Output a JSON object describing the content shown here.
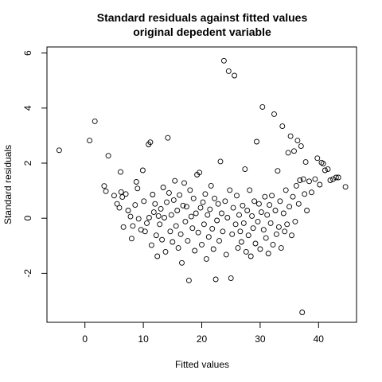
{
  "chart_data": {
    "type": "scatter",
    "title": "Standard residuals against fitted values",
    "subtitle": "original depedent variable",
    "xlabel": "Fitted values",
    "ylabel": "Standard residuals",
    "xlim": [
      -6.5,
      46.5
    ],
    "ylim": [
      -3.78,
      6.22
    ],
    "xticks": [
      0,
      10,
      20,
      30,
      40
    ],
    "xtick_labels": [
      "0",
      "10",
      "20",
      "30",
      "40"
    ],
    "yticks": [
      -2,
      0,
      2,
      4,
      6
    ],
    "ytick_labels": [
      "-2",
      "0",
      "2",
      "4",
      "6"
    ],
    "marker": "open-circle",
    "grid": false,
    "legend": "none",
    "series": [
      {
        "points": [
          [
            -4.4,
            2.47
          ],
          [
            0.8,
            2.82
          ],
          [
            1.7,
            3.52
          ],
          [
            3.3,
            1.17
          ],
          [
            3.6,
            0.98
          ],
          [
            4.0,
            2.27
          ],
          [
            5.0,
            0.82
          ],
          [
            5.5,
            0.52
          ],
          [
            5.9,
            0.38
          ],
          [
            6.1,
            1.68
          ],
          [
            6.2,
            0.95
          ],
          [
            6.4,
            0.77
          ],
          [
            6.6,
            -0.32
          ],
          [
            7.0,
            0.88
          ],
          [
            7.4,
            0.28
          ],
          [
            7.8,
            0.06
          ],
          [
            8.0,
            -0.74
          ],
          [
            8.2,
            -0.28
          ],
          [
            8.6,
            0.48
          ],
          [
            8.8,
            1.32
          ],
          [
            9.0,
            1.08
          ],
          [
            9.2,
            -0.02
          ],
          [
            9.6,
            -0.42
          ],
          [
            9.9,
            1.74
          ],
          [
            10.1,
            0.62
          ],
          [
            10.3,
            -0.48
          ],
          [
            10.6,
            -0.18
          ],
          [
            10.9,
            2.68
          ],
          [
            11.0,
            0.02
          ],
          [
            11.2,
            2.76
          ],
          [
            11.4,
            -0.98
          ],
          [
            11.6,
            0.86
          ],
          [
            11.8,
            0.22
          ],
          [
            12.0,
            0.52
          ],
          [
            12.2,
            -0.62
          ],
          [
            12.4,
            -1.38
          ],
          [
            12.6,
            0.08
          ],
          [
            12.8,
            -0.22
          ],
          [
            13.0,
            0.34
          ],
          [
            13.2,
            -0.78
          ],
          [
            13.4,
            1.12
          ],
          [
            13.6,
            0.02
          ],
          [
            13.8,
            -1.22
          ],
          [
            14.0,
            0.58
          ],
          [
            14.2,
            2.92
          ],
          [
            14.4,
            0.92
          ],
          [
            14.6,
            -0.48
          ],
          [
            14.8,
            0.12
          ],
          [
            15.0,
            -0.86
          ],
          [
            15.2,
            0.66
          ],
          [
            15.4,
            1.36
          ],
          [
            15.6,
            -0.28
          ],
          [
            15.8,
            0.28
          ],
          [
            16.0,
            -1.08
          ],
          [
            16.2,
            0.84
          ],
          [
            16.4,
            -0.58
          ],
          [
            16.6,
            -1.62
          ],
          [
            16.8,
            0.46
          ],
          [
            17.0,
            1.28
          ],
          [
            17.2,
            -0.12
          ],
          [
            17.4,
            0.42
          ],
          [
            17.6,
            -0.82
          ],
          [
            17.8,
            -2.26
          ],
          [
            18.0,
            1.02
          ],
          [
            18.2,
            0.06
          ],
          [
            18.4,
            -0.36
          ],
          [
            18.6,
            0.72
          ],
          [
            18.8,
            -1.18
          ],
          [
            19.0,
            0.18
          ],
          [
            19.2,
            1.58
          ],
          [
            19.4,
            -0.52
          ],
          [
            19.6,
            1.66
          ],
          [
            19.8,
            0.38
          ],
          [
            20.0,
            -0.96
          ],
          [
            20.2,
            0.58
          ],
          [
            20.4,
            -0.22
          ],
          [
            20.6,
            0.88
          ],
          [
            20.8,
            -1.48
          ],
          [
            21.0,
            0.12
          ],
          [
            21.2,
            -0.68
          ],
          [
            21.4,
            0.32
          ],
          [
            21.6,
            1.18
          ],
          [
            21.8,
            -0.38
          ],
          [
            22.0,
            -1.12
          ],
          [
            22.2,
            0.72
          ],
          [
            22.4,
            -2.22
          ],
          [
            22.6,
            -0.08
          ],
          [
            22.8,
            0.52
          ],
          [
            23.0,
            -0.82
          ],
          [
            23.2,
            2.06
          ],
          [
            23.4,
            0.18
          ],
          [
            23.6,
            -0.48
          ],
          [
            23.8,
            5.72
          ],
          [
            24.0,
            0.62
          ],
          [
            24.2,
            -1.32
          ],
          [
            24.4,
            0.02
          ],
          [
            24.6,
            5.34
          ],
          [
            24.8,
            1.02
          ],
          [
            25.0,
            -2.18
          ],
          [
            25.2,
            -0.58
          ],
          [
            25.4,
            0.38
          ],
          [
            25.6,
            5.18
          ],
          [
            25.8,
            -0.22
          ],
          [
            26.0,
            0.82
          ],
          [
            26.2,
            -1.08
          ],
          [
            26.4,
            0.12
          ],
          [
            26.6,
            -0.48
          ],
          [
            26.8,
            -0.86
          ],
          [
            27.0,
            0.46
          ],
          [
            27.2,
            -0.18
          ],
          [
            27.4,
            1.78
          ],
          [
            27.6,
            -1.22
          ],
          [
            27.8,
            0.28
          ],
          [
            28.0,
            -0.62
          ],
          [
            28.2,
            1.02
          ],
          [
            28.4,
            -1.38
          ],
          [
            28.6,
            0.08
          ],
          [
            28.8,
            -0.36
          ],
          [
            29.0,
            0.62
          ],
          [
            29.2,
            -0.92
          ],
          [
            29.4,
            2.78
          ],
          [
            29.6,
            -0.12
          ],
          [
            29.8,
            0.52
          ],
          [
            30.0,
            -1.12
          ],
          [
            30.2,
            0.22
          ],
          [
            30.4,
            4.04
          ],
          [
            30.6,
            -0.42
          ],
          [
            30.8,
            0.78
          ],
          [
            31.0,
            -0.72
          ],
          [
            31.2,
            0.12
          ],
          [
            31.4,
            -1.28
          ],
          [
            31.6,
            0.48
          ],
          [
            31.8,
            -0.18
          ],
          [
            32.0,
            0.82
          ],
          [
            32.2,
            -0.96
          ],
          [
            32.4,
            3.78
          ],
          [
            32.6,
            0.28
          ],
          [
            32.8,
            -0.58
          ],
          [
            33.0,
            1.72
          ],
          [
            33.2,
            -0.32
          ],
          [
            33.4,
            0.62
          ],
          [
            33.6,
            -1.08
          ],
          [
            33.8,
            3.34
          ],
          [
            34.0,
            0.18
          ],
          [
            34.2,
            -0.48
          ],
          [
            34.4,
            1.02
          ],
          [
            34.6,
            -0.22
          ],
          [
            34.8,
            2.38
          ],
          [
            35.0,
            0.42
          ],
          [
            35.2,
            2.98
          ],
          [
            35.4,
            -0.62
          ],
          [
            35.6,
            0.78
          ],
          [
            35.8,
            2.44
          ],
          [
            36.0,
            -0.12
          ],
          [
            36.2,
            1.18
          ],
          [
            36.4,
            2.82
          ],
          [
            36.6,
            0.52
          ],
          [
            36.8,
            1.38
          ],
          [
            37.0,
            2.62
          ],
          [
            37.2,
            -3.42
          ],
          [
            37.4,
            1.42
          ],
          [
            37.6,
            0.88
          ],
          [
            37.8,
            2.04
          ],
          [
            38.0,
            0.28
          ],
          [
            38.4,
            1.34
          ],
          [
            38.8,
            0.94
          ],
          [
            39.4,
            1.42
          ],
          [
            39.8,
            2.18
          ],
          [
            40.2,
            1.22
          ],
          [
            40.5,
            2.02
          ],
          [
            40.8,
            1.98
          ],
          [
            41.1,
            1.74
          ],
          [
            41.6,
            1.78
          ],
          [
            42.0,
            1.38
          ],
          [
            42.5,
            1.42
          ],
          [
            43.0,
            1.48
          ],
          [
            43.4,
            1.48
          ],
          [
            44.6,
            1.14
          ]
        ]
      }
    ]
  }
}
